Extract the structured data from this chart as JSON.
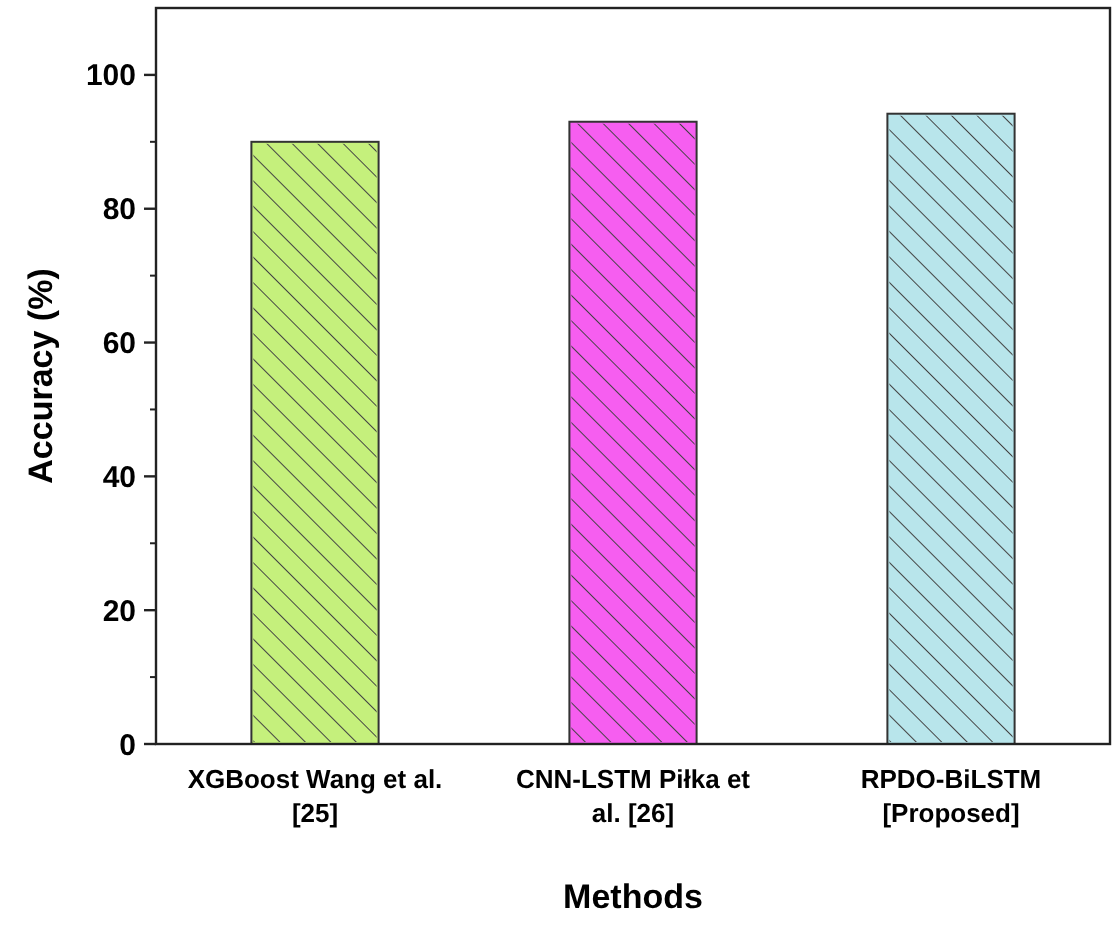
{
  "chart_data": {
    "type": "bar",
    "xlabel": "Methods",
    "ylabel": "Accuracy (%)",
    "categories": [
      "XGBoost Wang et al. [25]",
      "CNN-LSTM Piłka et al. [26]",
      "RPDO-BiLSTM [Proposed]"
    ],
    "values": [
      90,
      93,
      94.2
    ],
    "colors": [
      "#c5f07c",
      "#f65ef0",
      "#b8e5eb"
    ],
    "ylim": [
      0,
      110
    ],
    "yticks": [
      0,
      20,
      40,
      60,
      80,
      100
    ],
    "grid": false
  }
}
